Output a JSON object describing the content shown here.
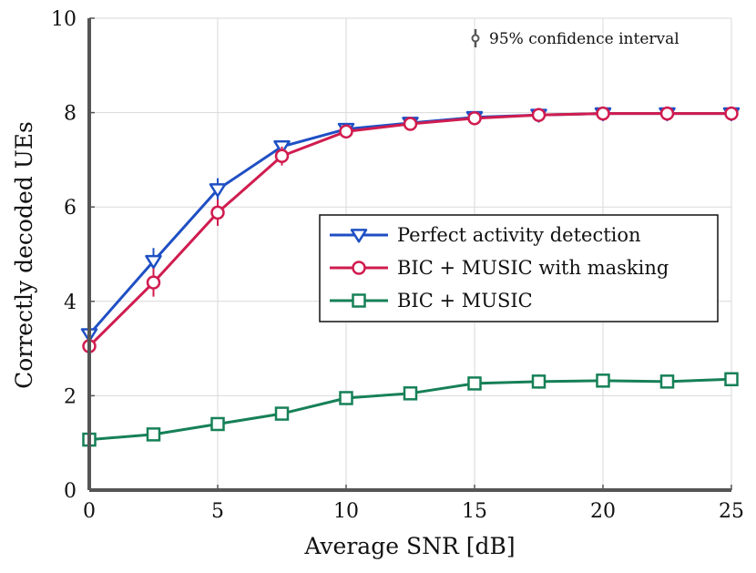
{
  "chart_data": {
    "type": "line",
    "xlabel": "Average SNR [dB]",
    "ylabel": "Correctly decoded UEs",
    "xlim": [
      0,
      25
    ],
    "ylim": [
      0,
      10
    ],
    "xticks": [
      "0",
      "5",
      "10",
      "15",
      "20",
      "25"
    ],
    "yticks": [
      "0",
      "2",
      "4",
      "6",
      "8",
      "10"
    ],
    "grid": true,
    "legend_position": "center-right",
    "annotation": "95% confidence interval",
    "x": [
      0,
      2.5,
      5,
      7.5,
      10,
      12.5,
      15,
      17.5,
      20,
      22.5,
      25
    ],
    "series": [
      {
        "name": "Perfect activity detection",
        "color": "#1f4fc4",
        "marker": "triangle-down",
        "values": [
          3.3,
          4.85,
          6.37,
          7.28,
          7.65,
          7.78,
          7.9,
          7.95,
          7.98,
          7.98,
          7.98
        ],
        "ci": [
          0.1,
          0.28,
          0.24,
          0.12,
          0.08,
          0.07,
          0.06,
          0.05,
          0.04,
          0.04,
          0.04
        ]
      },
      {
        "name": "BIC + MUSIC with masking",
        "color": "#d01c4f",
        "marker": "circle",
        "values": [
          3.05,
          4.4,
          5.88,
          7.08,
          7.6,
          7.76,
          7.88,
          7.95,
          7.98,
          7.98,
          7.98
        ],
        "ci": [
          0.12,
          0.3,
          0.28,
          0.2,
          0.1,
          0.08,
          0.06,
          0.05,
          0.04,
          0.04,
          0.04
        ]
      },
      {
        "name": "BIC + MUSIC",
        "color": "#168057",
        "marker": "square",
        "values": [
          1.07,
          1.18,
          1.4,
          1.62,
          1.95,
          2.05,
          2.26,
          2.3,
          2.32,
          2.3,
          2.35
        ],
        "ci": [
          0.07,
          0.08,
          0.09,
          0.1,
          0.12,
          0.14,
          0.14,
          0.15,
          0.14,
          0.14,
          0.14
        ]
      }
    ]
  }
}
